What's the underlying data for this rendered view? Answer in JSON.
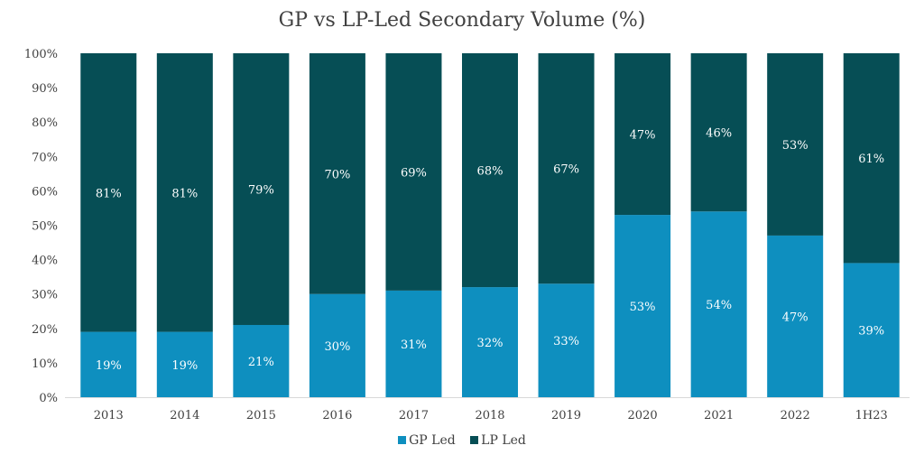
{
  "chart_data": {
    "type": "bar",
    "stacked": true,
    "title": "GP vs LP-Led Secondary Volume (%)",
    "xlabel": "",
    "ylabel": "",
    "ylim": [
      0,
      100
    ],
    "yticks": [
      "0%",
      "10%",
      "20%",
      "30%",
      "40%",
      "50%",
      "60%",
      "70%",
      "80%",
      "90%",
      "100%"
    ],
    "categories": [
      "2013",
      "2014",
      "2015",
      "2016",
      "2017",
      "2018",
      "2019",
      "2020",
      "2021",
      "2022",
      "1H23"
    ],
    "series": [
      {
        "name": "GP Led",
        "color": "#0e8fbf",
        "values": [
          19,
          19,
          21,
          30,
          31,
          32,
          33,
          53,
          54,
          47,
          39
        ],
        "labels": [
          "19%",
          "19%",
          "21%",
          "30%",
          "31%",
          "32%",
          "33%",
          "53%",
          "54%",
          "47%",
          "39%"
        ]
      },
      {
        "name": "LP Led",
        "color": "#064e55",
        "values": [
          81,
          81,
          79,
          70,
          69,
          68,
          67,
          47,
          46,
          53,
          61
        ],
        "labels": [
          "81%",
          "81%",
          "79%",
          "70%",
          "69%",
          "68%",
          "67%",
          "47%",
          "46%",
          "53%",
          "61%"
        ]
      }
    ],
    "grid": false,
    "legend_position": "bottom"
  }
}
